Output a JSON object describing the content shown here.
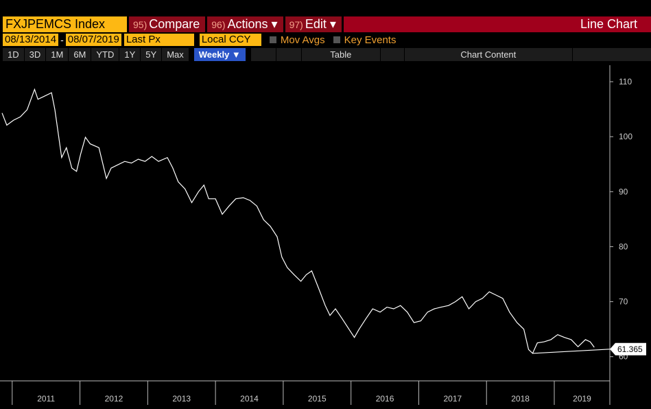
{
  "toolbar": {
    "ticker": "FXJPEMCS Index",
    "menus": [
      {
        "num": "95)",
        "label": "Compare"
      },
      {
        "num": "96)",
        "label": "Actions ▾"
      },
      {
        "num": "97)",
        "label": "Edit ▾"
      }
    ],
    "view": "Line Chart",
    "start_date": "08/13/2014",
    "end_date": "08/07/2019",
    "field": "Last Px",
    "currency": "Local CCY",
    "mov_avgs": "Mov Avgs",
    "key_events": "Key Events",
    "periods": [
      "1D",
      "3D",
      "1M",
      "6M",
      "YTD",
      "1Y",
      "5Y",
      "Max"
    ],
    "frequency": "Weekly ▼",
    "table": "Table",
    "chart_content": "Chart Content"
  },
  "chart_data": {
    "type": "line",
    "color": "#ffffff",
    "x": [
      2010.85,
      2010.92,
      2011.02,
      2011.12,
      2011.22,
      2011.33,
      2011.38,
      2011.48,
      2011.58,
      2011.63,
      2011.73,
      2011.8,
      2011.88,
      2011.95,
      2012.01,
      2012.08,
      2012.15,
      2012.28,
      2012.39,
      2012.46,
      2012.56,
      2012.66,
      2012.76,
      2012.86,
      2012.96,
      2013.06,
      2013.16,
      2013.29,
      2013.37,
      2013.45,
      2013.55,
      2013.65,
      2013.75,
      2013.83,
      2013.9,
      2014.0,
      2014.1,
      2014.2,
      2014.3,
      2014.41,
      2014.51,
      2014.61,
      2014.71,
      2014.81,
      2014.91,
      2014.98,
      2015.06,
      2015.16,
      2015.26,
      2015.34,
      2015.42,
      2015.52,
      2015.62,
      2015.69,
      2015.77,
      2015.87,
      2015.97,
      2016.05,
      2016.12,
      2016.22,
      2016.32,
      2016.43,
      2016.53,
      2016.63,
      2016.73,
      2016.83,
      2016.93,
      2017.03,
      2017.13,
      2017.23,
      2017.33,
      2017.44,
      2017.54,
      2017.64,
      2017.74,
      2017.84,
      2017.94,
      2018.04,
      2018.14,
      2018.24,
      2018.34,
      2018.45,
      2018.55,
      2018.62,
      2018.68,
      2018.75,
      2018.85,
      2018.95,
      2019.05,
      2019.15,
      2019.25,
      2019.35,
      2019.46,
      2019.53,
      2019.59
    ],
    "values": [
      104.3,
      102.1,
      103,
      103.6,
      104.9,
      108.6,
      106.8,
      107.4,
      108,
      104.9,
      96.2,
      98,
      94.3,
      93.7,
      96.8,
      99.9,
      98.7,
      98,
      92.4,
      94.3,
      94.9,
      95.5,
      95.2,
      95.9,
      95.5,
      96.4,
      95.5,
      96.2,
      94.3,
      91.8,
      90.5,
      88,
      90,
      91.2,
      88.7,
      88.7,
      85.9,
      87.4,
      88.7,
      88.9,
      88.4,
      87.4,
      84.9,
      83.7,
      81.8,
      78.1,
      76.2,
      74.9,
      73.7,
      74.9,
      75.6,
      72.5,
      69.3,
      67.5,
      68.7,
      66.9,
      65,
      63.5,
      65,
      66.9,
      68.7,
      68.1,
      69,
      68.7,
      69.3,
      68.1,
      66.2,
      66.5,
      68.1,
      68.7,
      69,
      69.3,
      70,
      70.9,
      68.7,
      70,
      70.6,
      71.8,
      71.2,
      70.6,
      68.1,
      66.2,
      65,
      61.3,
      60.6,
      62.5,
      62.7,
      63.1,
      64,
      63.5,
      63.1,
      61.8,
      63.1,
      62.7,
      61.7
    ],
    "trendline": {
      "x": [
        2018.68,
        2019.82
      ],
      "values": [
        60.6,
        61.365
      ]
    },
    "xlim": [
      2010.82,
      2019.82
    ],
    "xticks": [
      2011,
      2012,
      2013,
      2014,
      2015,
      2016,
      2017,
      2018,
      2019
    ],
    "ylim": [
      55.6,
      113
    ],
    "yticks": [
      60,
      70,
      80,
      90,
      100,
      110
    ]
  }
}
